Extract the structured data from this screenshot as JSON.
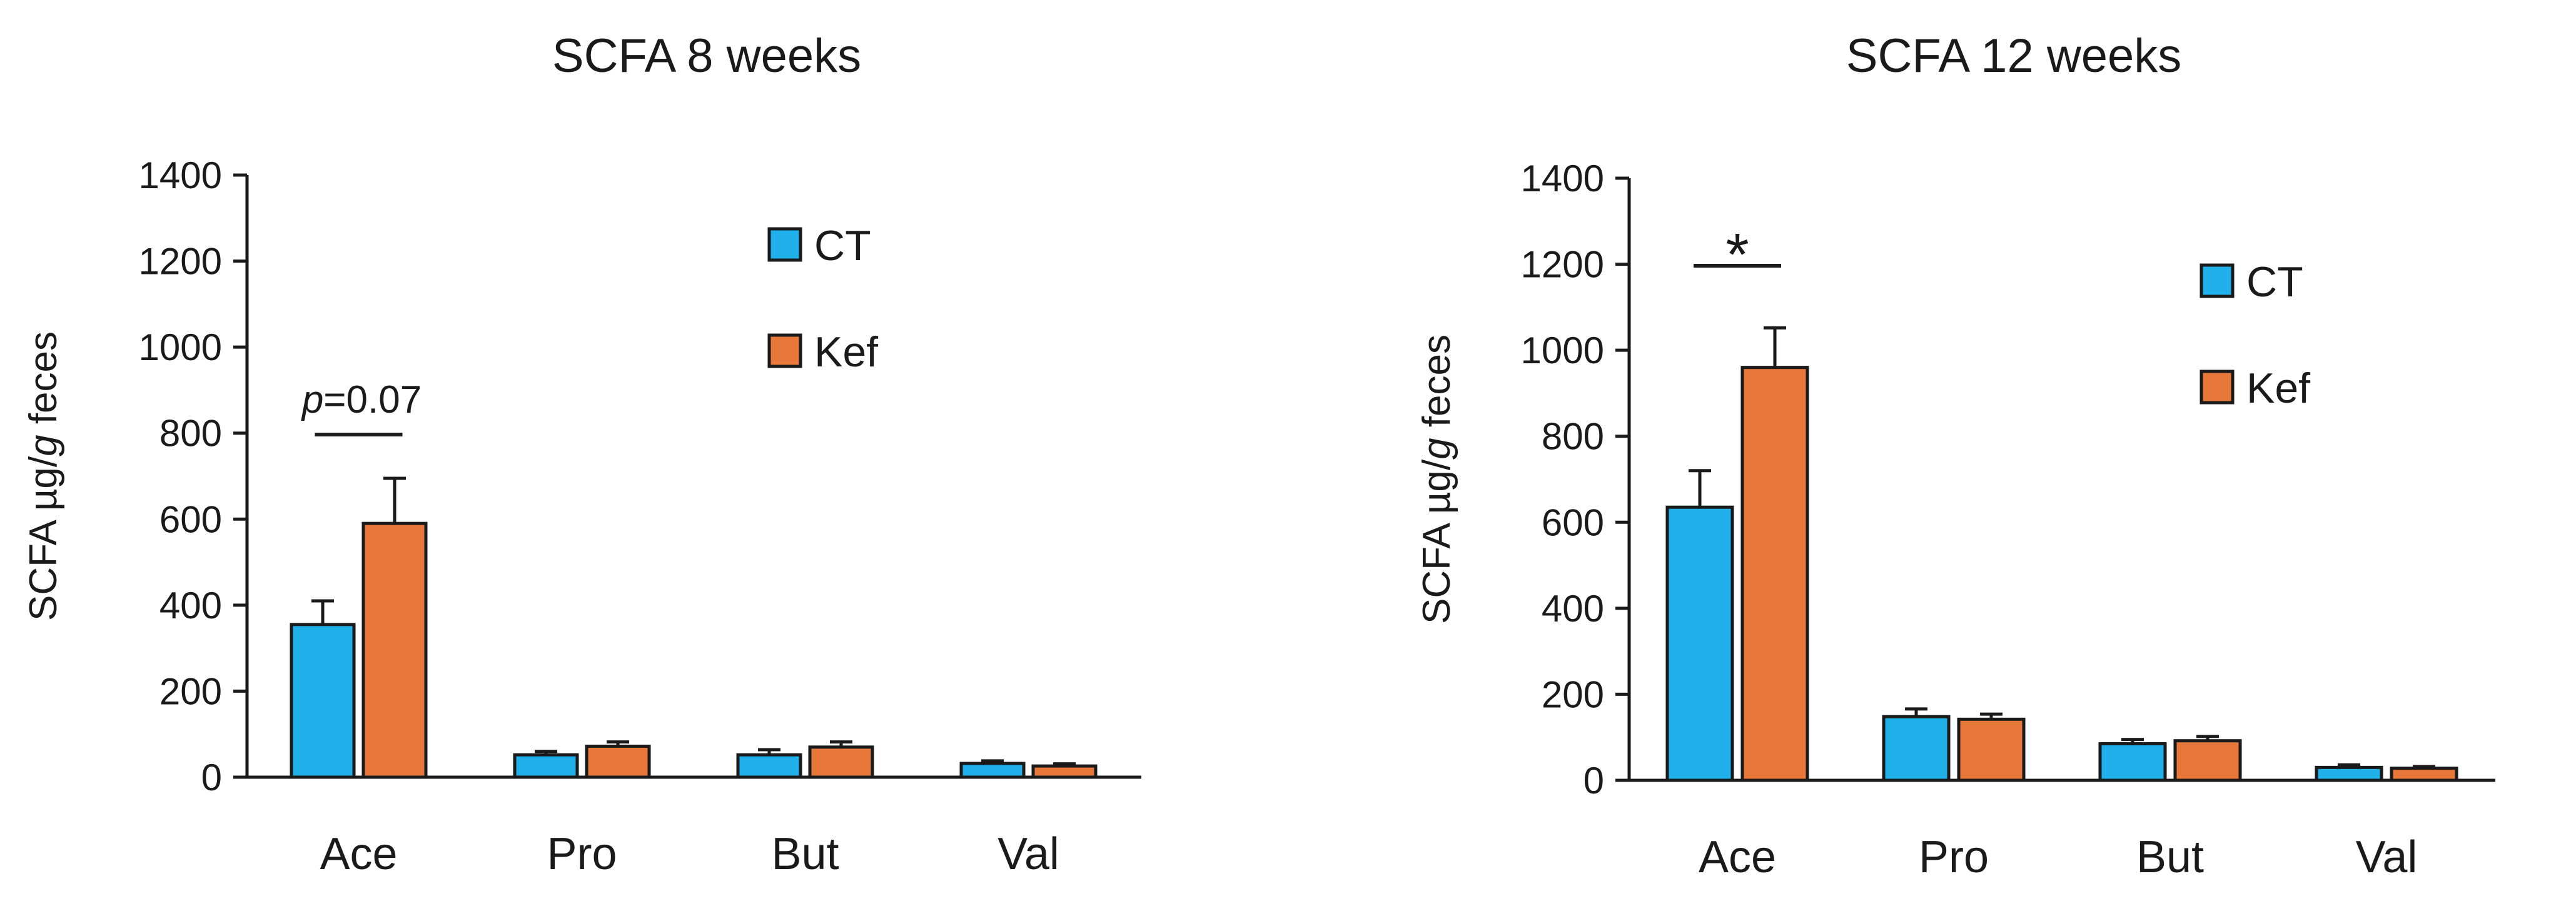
{
  "chart_data": [
    {
      "type": "bar",
      "title": "SCFA 8 weeks",
      "ylabel_parts": [
        "SCFA µg/",
        "g",
        " feces"
      ],
      "xlabel": "",
      "categories": [
        "Ace",
        "Pro",
        "But",
        "Val"
      ],
      "ylim": [
        0,
        1400
      ],
      "yticks": [
        0,
        200,
        400,
        600,
        800,
        1000,
        1200,
        1400
      ],
      "series": [
        {
          "name": "CT",
          "color": "#1fb0ea",
          "values": [
            355,
            52,
            52,
            32
          ],
          "errors": [
            55,
            8,
            12,
            6
          ]
        },
        {
          "name": "Kef",
          "color": "#e8773a",
          "values": [
            590,
            72,
            70,
            26
          ],
          "errors": [
            105,
            10,
            12,
            5
          ]
        }
      ],
      "legend_position": "top-right",
      "annotation": {
        "category": "Ace",
        "parts": [
          "p",
          "=0.07"
        ],
        "style": "significance-bracket"
      }
    },
    {
      "type": "bar",
      "title": "SCFA 12 weeks",
      "ylabel_parts": [
        "SCFA µg/",
        "g",
        " feces"
      ],
      "xlabel": "",
      "categories": [
        "Ace",
        "Pro",
        "But",
        "Val"
      ],
      "ylim": [
        0,
        1400
      ],
      "yticks": [
        0,
        200,
        400,
        600,
        800,
        1000,
        1200,
        1400
      ],
      "series": [
        {
          "name": "CT",
          "color": "#1fb0ea",
          "values": [
            635,
            148,
            85,
            30
          ],
          "errors": [
            85,
            18,
            10,
            6
          ]
        },
        {
          "name": "Kef",
          "color": "#e8773a",
          "values": [
            960,
            142,
            92,
            28
          ],
          "errors": [
            92,
            12,
            10,
            4
          ]
        }
      ],
      "legend_position": "top-right",
      "annotation": {
        "category": "Ace",
        "parts": [
          "*"
        ],
        "style": "significance-bracket"
      }
    }
  ]
}
